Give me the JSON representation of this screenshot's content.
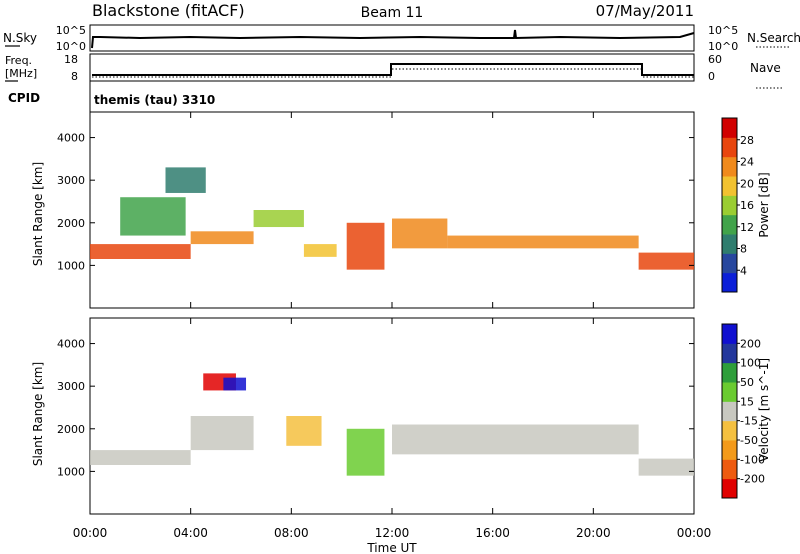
{
  "header": {
    "station": "Blackstone (fitACF)",
    "beam": "Beam 11",
    "date": "07/May/2011"
  },
  "sky_panel": {
    "left_label": "N.Sky",
    "right_label": "N.Search",
    "left_ticks": [
      "10^5",
      "10^0"
    ],
    "right_ticks": [
      "10^5",
      "10^0"
    ]
  },
  "freq_panel": {
    "left_label_1": "Freq.",
    "left_label_2": "[MHz]",
    "left_ticks": [
      "18",
      "8"
    ],
    "right_label": "Nave",
    "right_ticks": [
      "60",
      "0"
    ],
    "cpid_label": "CPID",
    "cpid_value": "themis (tau) 3310"
  },
  "colors": {
    "power_scale": [
      "#0b1fd8",
      "#27479e",
      "#2f7d6e",
      "#41a34a",
      "#9acd32",
      "#f2c230",
      "#f08a1c",
      "#e8460e",
      "#d10000"
    ],
    "velocity_scale": [
      "#e00000",
      "#ee5b10",
      "#f39a1a",
      "#f4c040",
      "#c8c8c0",
      "#6acb30",
      "#2e9e3a",
      "#23379c",
      "#1010d0"
    ],
    "ground_scatter": "#c8c8c0"
  },
  "chart_data": [
    {
      "type": "heatmap",
      "name": "power",
      "xlabel": "",
      "ylabel": "Slant Range [km]",
      "ylim": [
        0,
        4600
      ],
      "yticks": [
        "1000",
        "2000",
        "3000",
        "4000"
      ],
      "xlim": [
        0,
        24
      ],
      "colorbar": {
        "label": "Power [dB]",
        "ticks": [
          "4",
          "8",
          "12",
          "16",
          "20",
          "24",
          "28"
        ],
        "range": [
          0,
          32
        ]
      },
      "echo_bands": [
        {
          "t_start": 0.0,
          "t_end": 4.0,
          "range_start": 1150,
          "range_end": 1500,
          "power": 28
        },
        {
          "t_start": 4.0,
          "t_end": 6.5,
          "range_start": 1500,
          "range_end": 1800,
          "power": 22
        },
        {
          "t_start": 1.2,
          "t_end": 3.8,
          "range_start": 1700,
          "range_end": 2600,
          "power": 14
        },
        {
          "t_start": 3.0,
          "t_end": 4.6,
          "range_start": 2700,
          "range_end": 3300,
          "power": 10
        },
        {
          "t_start": 6.5,
          "t_end": 8.5,
          "range_start": 1900,
          "range_end": 2300,
          "power": 16
        },
        {
          "t_start": 8.5,
          "t_end": 9.8,
          "range_start": 1200,
          "range_end": 1500,
          "power": 18
        },
        {
          "t_start": 10.2,
          "t_end": 11.7,
          "range_start": 900,
          "range_end": 2000,
          "power": 26
        },
        {
          "t_start": 12.0,
          "t_end": 14.2,
          "range_start": 1400,
          "range_end": 2100,
          "power": 22
        },
        {
          "t_start": 14.2,
          "t_end": 21.8,
          "range_start": 1400,
          "range_end": 1700,
          "power": 24
        },
        {
          "t_start": 21.8,
          "t_end": 24.0,
          "range_start": 900,
          "range_end": 1300,
          "power": 27
        }
      ]
    },
    {
      "type": "heatmap",
      "name": "velocity",
      "xlabel": "Time UT",
      "ylabel": "Slant Range [km]",
      "ylim": [
        0,
        4600
      ],
      "yticks": [
        "1000",
        "2000",
        "3000",
        "4000"
      ],
      "xlim": [
        0,
        24
      ],
      "xticks": [
        "00:00",
        "04:00",
        "08:00",
        "12:00",
        "16:00",
        "20:00",
        "00:00"
      ],
      "colorbar": {
        "label": "Velocity [m s^-1]",
        "ticks": [
          "-200",
          "-100",
          "-50",
          "-15",
          "15",
          "50",
          "100",
          "200"
        ],
        "range": [
          -250,
          250
        ]
      },
      "echo_bands": [
        {
          "t_start": 0.0,
          "t_end": 4.0,
          "range_start": 1150,
          "range_end": 1500,
          "velocity": 0
        },
        {
          "t_start": 4.0,
          "t_end": 6.5,
          "range_start": 1500,
          "range_end": 2300,
          "velocity": 0
        },
        {
          "t_start": 4.5,
          "t_end": 5.8,
          "range_start": 2900,
          "range_end": 3300,
          "velocity": -200
        },
        {
          "t_start": 5.3,
          "t_end": 6.2,
          "range_start": 2900,
          "range_end": 3200,
          "velocity": 200
        },
        {
          "t_start": 7.8,
          "t_end": 9.2,
          "range_start": 1600,
          "range_end": 2300,
          "velocity": -60
        },
        {
          "t_start": 10.2,
          "t_end": 11.7,
          "range_start": 900,
          "range_end": 2000,
          "velocity": 30
        },
        {
          "t_start": 12.0,
          "t_end": 21.8,
          "range_start": 1400,
          "range_end": 2100,
          "velocity": 0
        },
        {
          "t_start": 21.8,
          "t_end": 24.0,
          "range_start": 900,
          "range_end": 1300,
          "velocity": 0
        }
      ]
    }
  ]
}
